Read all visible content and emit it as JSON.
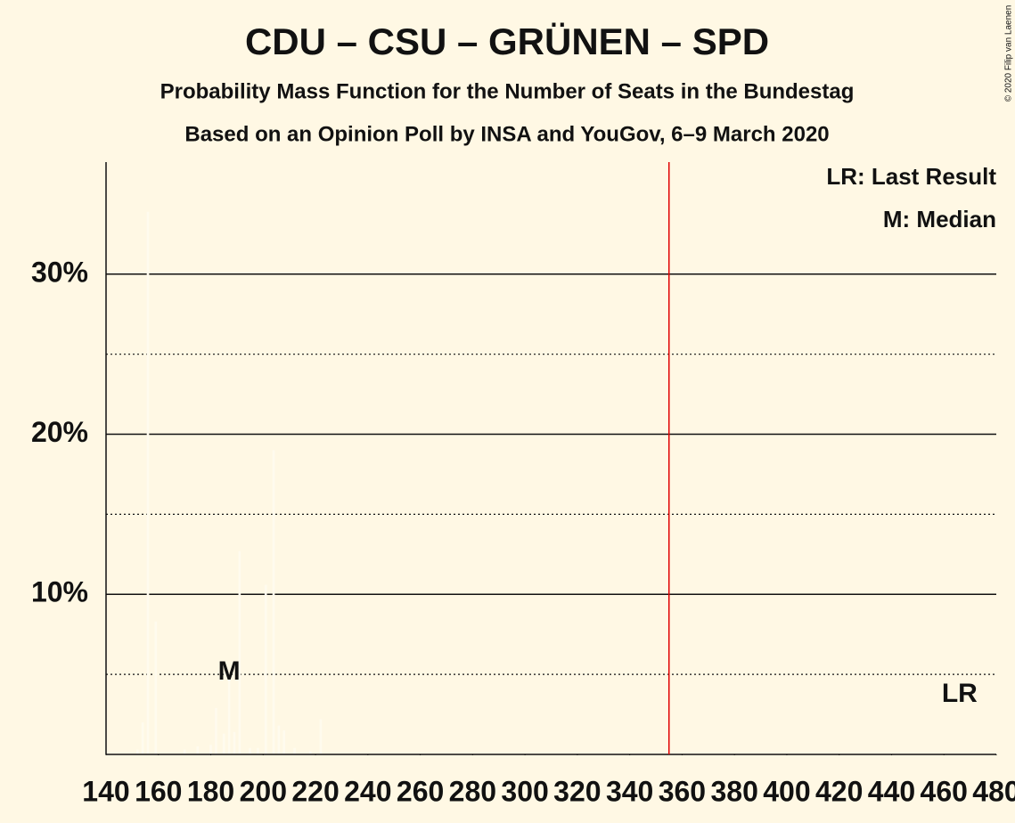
{
  "chart_data": {
    "type": "bar",
    "title": "CDU – CSU – GRÜNEN – SPD",
    "subtitle": "Probability Mass Function for the Number of Seats in the Bundestag",
    "subtitle2": "Based on an Opinion Poll by INSA and YouGov, 6–9 March 2020",
    "copyright": "© 2020 Filip van Laenen",
    "legend_lr": "LR: Last Result",
    "legend_m": "M: Median",
    "median_label": "M",
    "last_result_label": "LR",
    "median": 187,
    "last_result": 466,
    "majority": 355,
    "color": "#fffbee",
    "majority_color": "#e00000",
    "x": [
      152,
      154,
      156,
      159,
      170,
      175,
      180,
      182,
      185,
      187,
      189,
      191,
      195,
      198,
      201,
      204,
      206,
      208,
      212,
      218,
      222
    ],
    "values": [
      0.3,
      2.0,
      33.9,
      8.3,
      0.3,
      0.5,
      0.6,
      2.9,
      1.3,
      5.0,
      1.4,
      12.7,
      0.4,
      0.4,
      10.6,
      19.0,
      1.8,
      1.5,
      0.4,
      0.2,
      2.2
    ],
    "xlim": [
      140,
      480
    ],
    "xticks": [
      140,
      160,
      180,
      200,
      220,
      240,
      260,
      280,
      300,
      320,
      340,
      360,
      380,
      400,
      420,
      440,
      460,
      480
    ],
    "ylim": [
      0,
      37
    ],
    "yticks": [
      {
        "value": 10,
        "label": "10%"
      },
      {
        "value": 20,
        "label": "20%"
      },
      {
        "value": 30,
        "label": "30%"
      }
    ],
    "minor_yticks": [
      5,
      15,
      25
    ],
    "grid": true
  }
}
